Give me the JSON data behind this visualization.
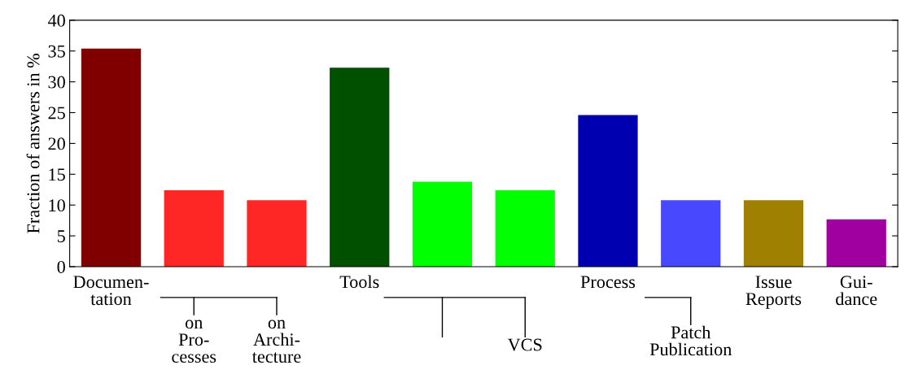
{
  "chart_data": {
    "type": "bar",
    "ylabel": "Fraction of answers in %",
    "categories": [
      "Documen-\ntation",
      "on\nPro-\ncesses",
      "on\nArchi-\ntecture",
      "Tools",
      null,
      "VCS",
      "Process",
      "Patch\nPublication",
      "Issue\nReports",
      "Gui-\ndance"
    ],
    "values": [
      35.4,
      12.4,
      10.8,
      32.3,
      13.8,
      12.4,
      24.6,
      10.8,
      10.8,
      7.7
    ],
    "colors": [
      "#800000",
      "#ff2626",
      "#ff2626",
      "#005000",
      "#00ff00",
      "#00ff00",
      "#0000b0",
      "#4848ff",
      "#a08000",
      "#a000a0"
    ],
    "ylim": [
      0,
      40
    ],
    "yticks": [
      0,
      5,
      10,
      15,
      20,
      25,
      30,
      35,
      40
    ],
    "grid": false
  }
}
